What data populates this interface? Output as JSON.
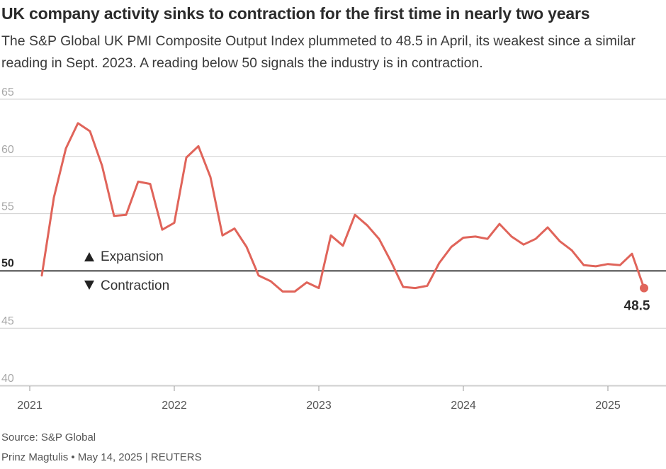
{
  "header": {
    "title": "UK company activity sinks to contraction for the first time in nearly two years",
    "subtitle": "The S&P Global UK PMI Composite Output Index plummeted to 48.5 in April, its weakest since a similar reading in Sept. 2023. A reading below 50 signals the industry is in contraction."
  },
  "chart_data": {
    "type": "line",
    "title": "UK company activity sinks to contraction for the first time in nearly two years",
    "xlabel": "",
    "ylabel": "",
    "ylim": [
      40,
      65
    ],
    "yticks": [
      "65",
      "60",
      "55",
      "45",
      "40"
    ],
    "reference_line": {
      "value": 50,
      "label": "50"
    },
    "xlim": [
      "2021-01",
      "2025-05"
    ],
    "xticks": [
      "2021",
      "2022",
      "2023",
      "2024",
      "2025"
    ],
    "annotations": {
      "expansion": "Expansion",
      "contraction": "Contraction",
      "last_label": "48.5"
    },
    "series": [
      {
        "name": "S&P Global UK PMI Composite Output Index",
        "color": "#e0645a",
        "x": [
          "2021-02",
          "2021-03",
          "2021-04",
          "2021-05",
          "2021-06",
          "2021-07",
          "2021-08",
          "2021-09",
          "2021-10",
          "2021-11",
          "2021-12",
          "2022-01",
          "2022-02",
          "2022-03",
          "2022-04",
          "2022-05",
          "2022-06",
          "2022-07",
          "2022-08",
          "2022-09",
          "2022-10",
          "2022-11",
          "2022-12",
          "2023-01",
          "2023-02",
          "2023-03",
          "2023-04",
          "2023-05",
          "2023-06",
          "2023-07",
          "2023-08",
          "2023-09",
          "2023-10",
          "2023-11",
          "2023-12",
          "2024-01",
          "2024-02",
          "2024-03",
          "2024-04",
          "2024-05",
          "2024-06",
          "2024-07",
          "2024-08",
          "2024-09",
          "2024-10",
          "2024-11",
          "2024-12",
          "2025-01",
          "2025-02",
          "2025-03",
          "2025-04"
        ],
        "values": [
          49.6,
          56.4,
          60.7,
          62.9,
          62.2,
          59.2,
          54.8,
          54.9,
          57.8,
          57.6,
          53.6,
          54.2,
          59.9,
          60.9,
          58.2,
          53.1,
          53.7,
          52.1,
          49.6,
          49.1,
          48.2,
          48.2,
          49.0,
          48.5,
          53.1,
          52.2,
          54.9,
          54.0,
          52.8,
          50.8,
          48.6,
          48.5,
          48.7,
          50.7,
          52.1,
          52.9,
          53.0,
          52.8,
          54.1,
          53.0,
          52.3,
          52.8,
          53.8,
          52.6,
          51.8,
          50.5,
          50.4,
          50.6,
          50.5,
          51.5,
          48.5
        ]
      }
    ]
  },
  "footer": {
    "source": "Source: S&P Global",
    "credit": "Prinz Magtulis • May 14, 2025 | REUTERS"
  }
}
